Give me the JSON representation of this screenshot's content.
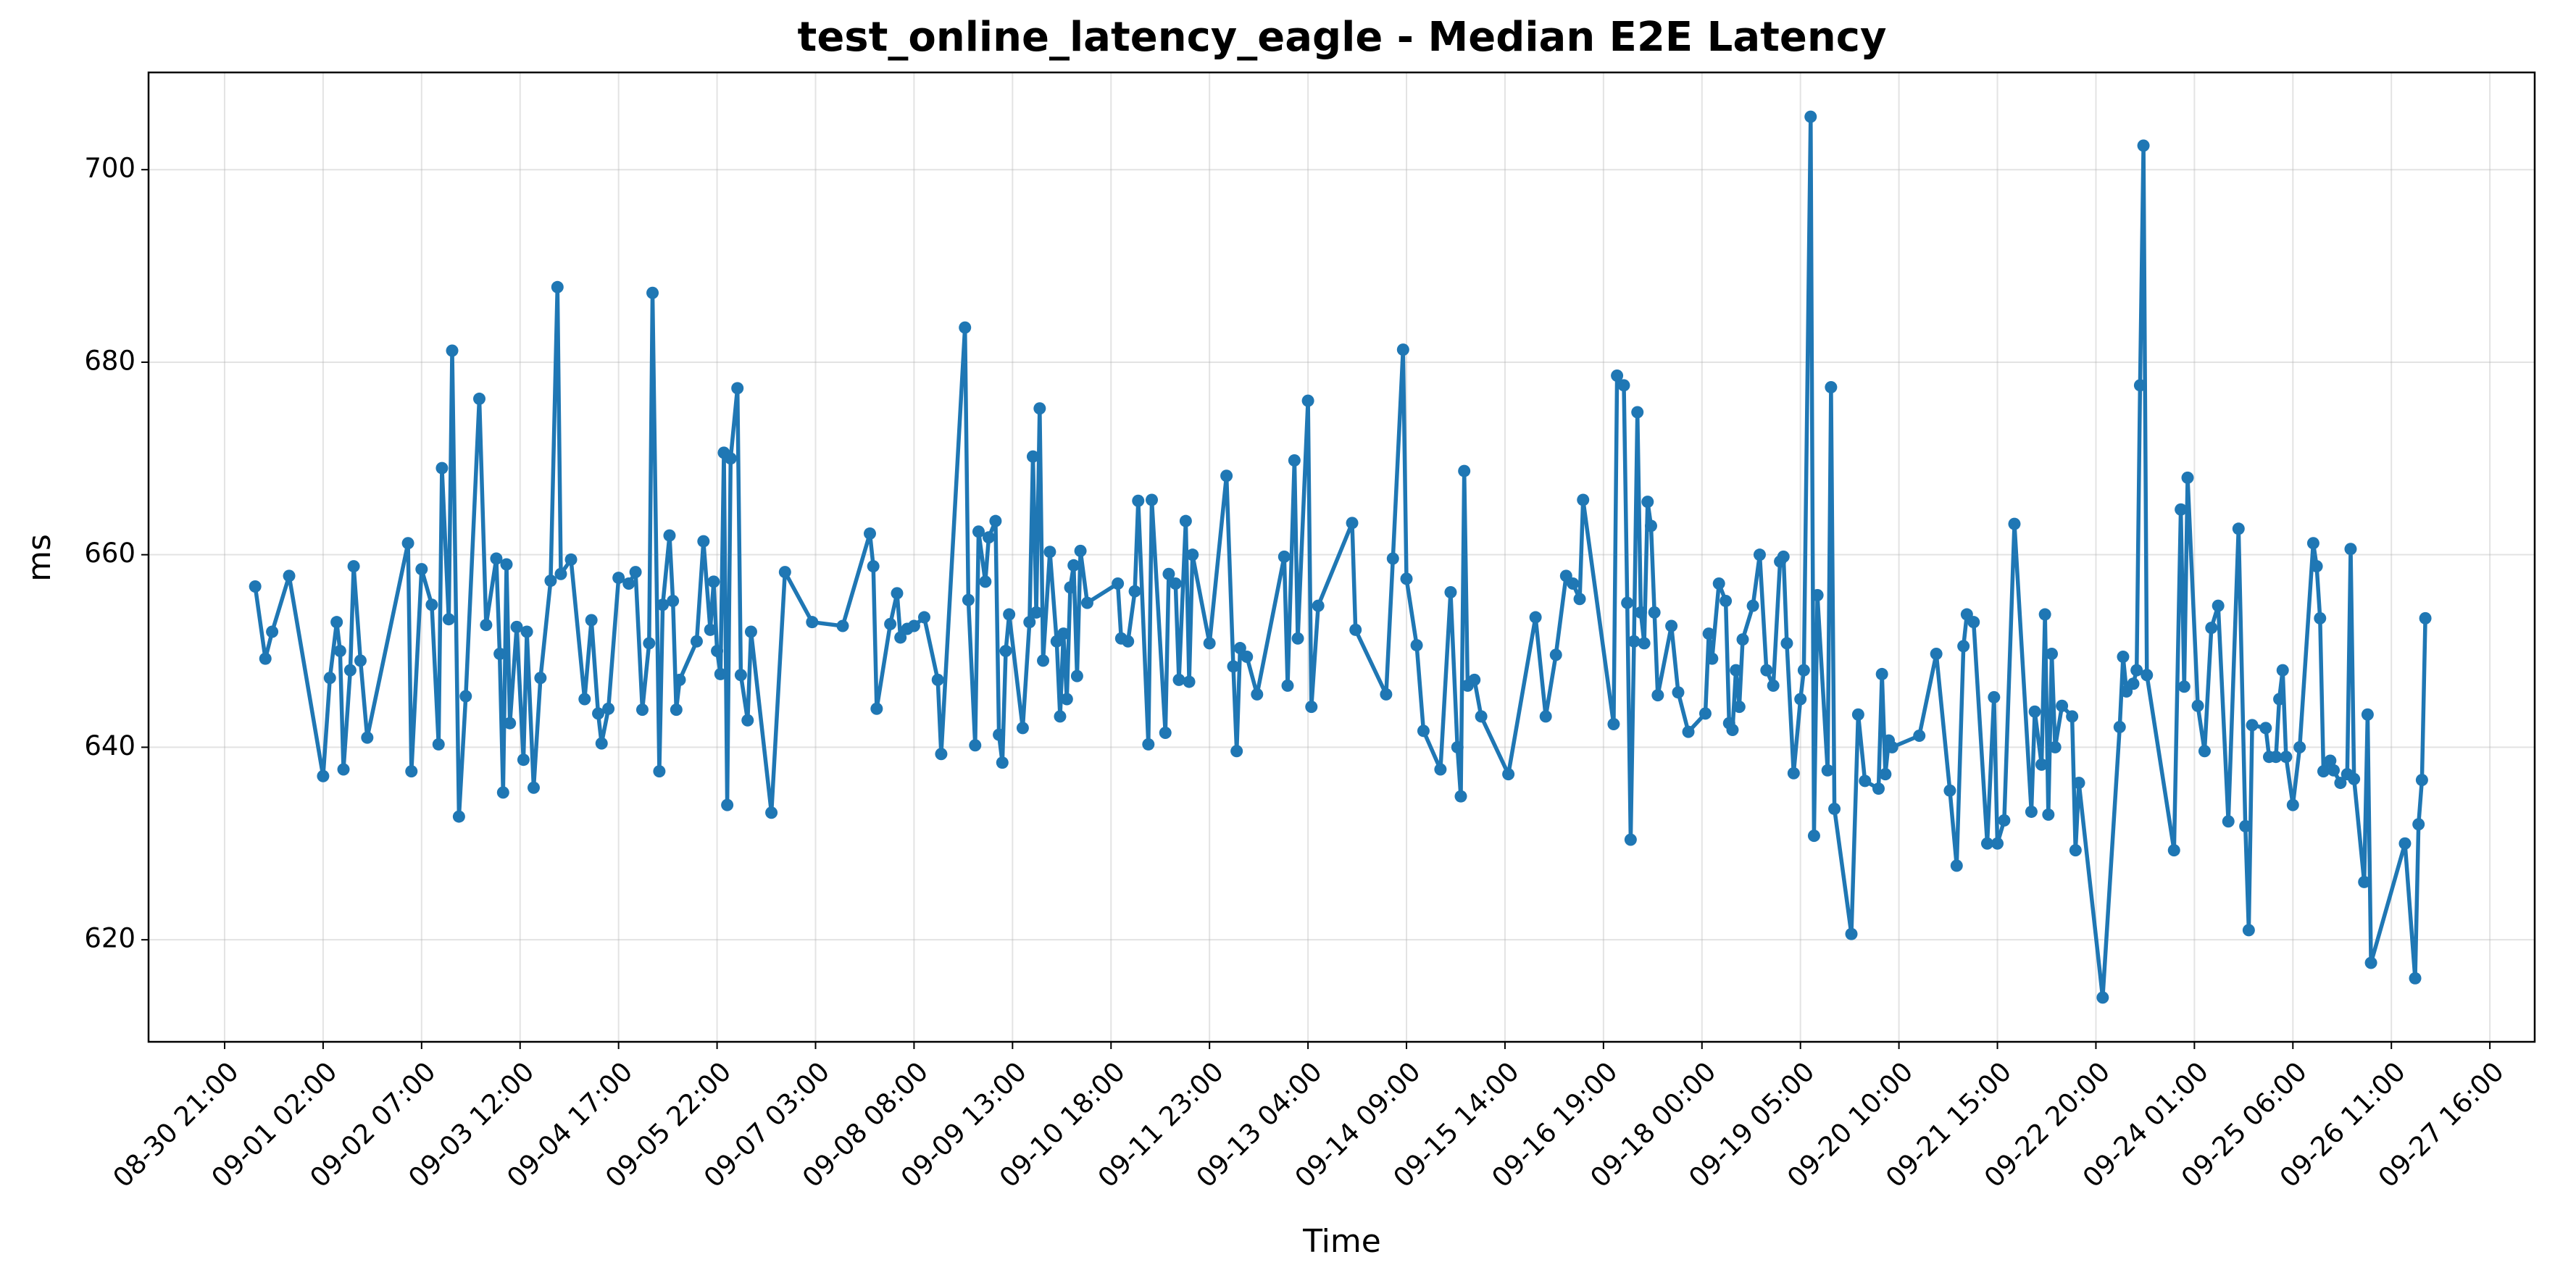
{
  "chart_data": {
    "type": "line",
    "title": "test_online_latency_eagle - Median E2E Latency",
    "x_label": "Time",
    "y_label": "ms",
    "color": "#1f77b4",
    "grid": true,
    "xlim": [
      "08-29 22:36",
      "09-28 05:12"
    ],
    "xticks": [
      "08-30 21:00",
      "09-01 02:00",
      "09-02 07:00",
      "09-03 12:00",
      "09-04 17:00",
      "09-05 22:00",
      "09-07 03:00",
      "09-08 08:00",
      "09-09 13:00",
      "09-10 18:00",
      "09-11 23:00",
      "09-13 04:00",
      "09-14 09:00",
      "09-15 14:00",
      "09-16 19:00",
      "09-18 00:00",
      "09-19 05:00",
      "09-20 10:00",
      "09-21 15:00",
      "09-22 20:00",
      "09-24 01:00",
      "09-25 06:00",
      "09-26 11:00",
      "09-27 16:00"
    ],
    "ylim": [
      609.4,
      710.1
    ],
    "yticks": [
      620,
      640,
      660,
      680,
      700
    ],
    "x": [
      "08-31 06:00",
      "08-31 09:00",
      "08-31 11:00",
      "08-31 16:00",
      "09-01 02:00",
      "09-01 04:00",
      "09-01 06:00",
      "09-01 07:00",
      "09-01 08:00",
      "09-01 10:00",
      "09-01 11:00",
      "09-01 13:00",
      "09-01 15:00",
      "09-02 03:00",
      "09-02 04:00",
      "09-02 07:00",
      "09-02 10:00",
      "09-02 12:00",
      "09-02 13:00",
      "09-02 15:00",
      "09-02 16:00",
      "09-02 18:00",
      "09-02 20:00",
      "09-03 00:00",
      "09-03 02:00",
      "09-03 05:00",
      "09-03 06:00",
      "09-03 07:00",
      "09-03 08:00",
      "09-03 09:00",
      "09-03 11:00",
      "09-03 13:00",
      "09-03 14:00",
      "09-03 16:00",
      "09-03 18:00",
      "09-03 21:00",
      "09-03 23:00",
      "09-04 00:00",
      "09-04 03:00",
      "09-04 07:00",
      "09-04 09:00",
      "09-04 11:00",
      "09-04 12:00",
      "09-04 14:00",
      "09-04 17:00",
      "09-04 20:00",
      "09-04 22:00",
      "09-05 00:00",
      "09-05 02:00",
      "09-05 03:00",
      "09-05 05:00",
      "09-05 06:00",
      "09-05 08:00",
      "09-05 09:00",
      "09-05 10:00",
      "09-05 11:00",
      "09-05 16:00",
      "09-05 18:00",
      "09-05 20:00",
      "09-05 21:00",
      "09-05 22:00",
      "09-05 23:00",
      "09-06 00:00",
      "09-06 01:00",
      "09-06 02:00",
      "09-06 04:00",
      "09-06 05:00",
      "09-06 07:00",
      "09-06 08:00",
      "09-06 14:00",
      "09-06 18:00",
      "09-07 02:00",
      "09-07 11:00",
      "09-07 19:00",
      "09-07 20:00",
      "09-07 21:00",
      "09-08 01:00",
      "09-08 03:00",
      "09-08 04:00",
      "09-08 06:00",
      "09-08 08:00",
      "09-08 11:00",
      "09-08 15:00",
      "09-08 16:00",
      "09-08 23:00",
      "09-09 00:00",
      "09-09 02:00",
      "09-09 03:00",
      "09-09 05:00",
      "09-09 06:00",
      "09-09 08:00",
      "09-09 09:00",
      "09-09 10:00",
      "09-09 11:00",
      "09-09 12:00",
      "09-09 16:00",
      "09-09 18:00",
      "09-09 19:00",
      "09-09 20:00",
      "09-09 21:00",
      "09-09 22:00",
      "09-10 00:00",
      "09-10 02:00",
      "09-10 03:00",
      "09-10 04:00",
      "09-10 05:00",
      "09-10 06:00",
      "09-10 07:00",
      "09-10 08:00",
      "09-10 09:00",
      "09-10 11:00",
      "09-10 20:00",
      "09-10 21:00",
      "09-10 23:00",
      "09-11 01:00",
      "09-11 02:00",
      "09-11 05:00",
      "09-11 06:00",
      "09-11 10:00",
      "09-11 11:00",
      "09-11 13:00",
      "09-11 14:00",
      "09-11 16:00",
      "09-11 17:00",
      "09-11 18:00",
      "09-11 23:00",
      "09-12 04:00",
      "09-12 06:00",
      "09-12 07:00",
      "09-12 08:00",
      "09-12 10:00",
      "09-12 13:00",
      "09-12 21:00",
      "09-12 22:00",
      "09-13 00:00",
      "09-13 01:00",
      "09-13 04:00",
      "09-13 05:00",
      "09-13 07:00",
      "09-13 17:00",
      "09-13 18:00",
      "09-14 03:00",
      "09-14 05:00",
      "09-14 08:00",
      "09-14 09:00",
      "09-14 12:00",
      "09-14 14:00",
      "09-14 19:00",
      "09-14 22:00",
      "09-15 00:00",
      "09-15 01:00",
      "09-15 02:00",
      "09-15 03:00",
      "09-15 05:00",
      "09-15 07:00",
      "09-15 15:00",
      "09-15 23:00",
      "09-16 02:00",
      "09-16 05:00",
      "09-16 08:00",
      "09-16 10:00",
      "09-16 12:00",
      "09-16 13:00",
      "09-16 22:00",
      "09-16 23:00",
      "09-17 01:00",
      "09-17 02:00",
      "09-17 03:00",
      "09-17 04:00",
      "09-17 05:00",
      "09-17 06:00",
      "09-17 07:00",
      "09-17 08:00",
      "09-17 09:00",
      "09-17 10:00",
      "09-17 11:00",
      "09-17 15:00",
      "09-17 17:00",
      "09-17 20:00",
      "09-18 01:00",
      "09-18 02:00",
      "09-18 03:00",
      "09-18 05:00",
      "09-18 07:00",
      "09-18 08:00",
      "09-18 09:00",
      "09-18 10:00",
      "09-18 11:00",
      "09-18 12:00",
      "09-18 15:00",
      "09-18 17:00",
      "09-18 19:00",
      "09-18 21:00",
      "09-18 23:00",
      "09-19 00:00",
      "09-19 01:00",
      "09-19 03:00",
      "09-19 05:00",
      "09-19 06:00",
      "09-19 08:00",
      "09-19 09:00",
      "09-19 10:00",
      "09-19 13:00",
      "09-19 14:00",
      "09-19 15:00",
      "09-19 20:00",
      "09-19 22:00",
      "09-20 00:00",
      "09-20 04:00",
      "09-20 05:00",
      "09-20 06:00",
      "09-20 07:00",
      "09-20 08:00",
      "09-20 16:00",
      "09-20 21:00",
      "09-21 01:00",
      "09-21 03:00",
      "09-21 05:00",
      "09-21 06:00",
      "09-21 08:00",
      "09-21 12:00",
      "09-21 14:00",
      "09-21 15:00",
      "09-21 17:00",
      "09-21 20:00",
      "09-22 01:00",
      "09-22 02:00",
      "09-22 04:00",
      "09-22 05:00",
      "09-22 06:00",
      "09-22 07:00",
      "09-22 08:00",
      "09-22 10:00",
      "09-22 13:00",
      "09-22 14:00",
      "09-22 15:00",
      "09-22 22:00",
      "09-23 03:00",
      "09-23 04:00",
      "09-23 05:00",
      "09-23 07:00",
      "09-23 08:00",
      "09-23 09:00",
      "09-23 10:00",
      "09-23 11:00",
      "09-23 19:00",
      "09-23 21:00",
      "09-23 22:00",
      "09-23 23:00",
      "09-24 02:00",
      "09-24 04:00",
      "09-24 06:00",
      "09-24 08:00",
      "09-24 11:00",
      "09-24 14:00",
      "09-24 16:00",
      "09-24 17:00",
      "09-24 18:00",
      "09-24 22:00",
      "09-24 23:00",
      "09-25 01:00",
      "09-25 02:00",
      "09-25 03:00",
      "09-25 04:00",
      "09-25 06:00",
      "09-25 08:00",
      "09-25 12:00",
      "09-25 13:00",
      "09-25 14:00",
      "09-25 15:00",
      "09-25 17:00",
      "09-25 18:00",
      "09-25 20:00",
      "09-25 22:00",
      "09-25 23:00",
      "09-26 00:00",
      "09-26 03:00",
      "09-26 04:00",
      "09-26 05:00",
      "09-26 15:00",
      "09-26 18:00",
      "09-26 19:00",
      "09-26 20:00",
      "09-26 21:00"
    ],
    "values": [
      656.7,
      649.2,
      652,
      657.8,
      637,
      647.2,
      653,
      650,
      637.7,
      648,
      658.8,
      649,
      641,
      661.2,
      637.5,
      658.5,
      654.8,
      640.3,
      669,
      653.3,
      681.2,
      632.8,
      645.3,
      676.2,
      652.7,
      659.6,
      649.7,
      635.3,
      659,
      642.5,
      652.5,
      638.7,
      652,
      635.8,
      647.2,
      657.3,
      687.8,
      658,
      659.5,
      645,
      653.2,
      643.5,
      640.4,
      644,
      657.6,
      657,
      658.2,
      643.9,
      650.8,
      687.2,
      637.5,
      654.8,
      662,
      655.2,
      643.9,
      647,
      651,
      661.4,
      652.2,
      657.2,
      650,
      647.6,
      670.6,
      634,
      670,
      677.3,
      647.5,
      642.8,
      652,
      633.2,
      658.2,
      653,
      652.6,
      662.2,
      658.8,
      644,
      652.8,
      656,
      651.4,
      652.3,
      652.6,
      653.5,
      647,
      639.3,
      683.6,
      655.3,
      640.2,
      662.4,
      657.2,
      661.8,
      663.5,
      641.3,
      638.4,
      650,
      653.8,
      642,
      653,
      670.2,
      654,
      675.2,
      649,
      660.3,
      651,
      643.2,
      651.8,
      645,
      656.6,
      658.9,
      647.4,
      660.4,
      655,
      657,
      651.3,
      651,
      656.2,
      665.6,
      640.3,
      665.7,
      641.5,
      658,
      657,
      647,
      663.5,
      646.8,
      660,
      650.8,
      668.2,
      648.4,
      639.6,
      650.3,
      649.4,
      645.5,
      659.8,
      646.4,
      669.8,
      651.3,
      676,
      644.2,
      654.7,
      663.3,
      652.2,
      645.5,
      659.6,
      681.3,
      657.5,
      650.6,
      641.7,
      637.7,
      656.1,
      640,
      634.9,
      668.7,
      646.4,
      647,
      643.2,
      637.2,
      653.5,
      643.2,
      649.6,
      657.8,
      657,
      655.4,
      665.7,
      642.4,
      678.6,
      677.6,
      655,
      630.4,
      651,
      674.8,
      654,
      650.8,
      665.5,
      663,
      654,
      645.4,
      652.6,
      645.7,
      641.6,
      643.5,
      651.8,
      649.2,
      657,
      655.2,
      642.5,
      641.8,
      648,
      644.2,
      651.2,
      654.7,
      660,
      648,
      646.4,
      659.3,
      659.8,
      650.8,
      637.3,
      645,
      648,
      705.5,
      630.8,
      655.8,
      637.6,
      677.4,
      633.6,
      620.6,
      643.4,
      636.5,
      635.7,
      647.6,
      637.2,
      640.7,
      640,
      641.2,
      649.7,
      635.5,
      627.7,
      650.5,
      653.8,
      653,
      630,
      645.2,
      630,
      632.4,
      663.2,
      633.3,
      643.7,
      638.2,
      653.8,
      633,
      649.7,
      640,
      644.3,
      643.2,
      629.3,
      636.3,
      614,
      642.1,
      649.4,
      645.8,
      646.6,
      648,
      677.6,
      702.5,
      647.5,
      629.3,
      664.7,
      646.3,
      668,
      644.3,
      639.6,
      652.4,
      654.7,
      632.3,
      662.7,
      631.8,
      621,
      642.3,
      642,
      639,
      639,
      645,
      648,
      639,
      634,
      640,
      661.2,
      658.8,
      653.4,
      637.5,
      638.6,
      637.6,
      636.3,
      637.2,
      660.6,
      636.7,
      626,
      643.4,
      617.6,
      630,
      616,
      632,
      636.6,
      653.4
    ]
  }
}
